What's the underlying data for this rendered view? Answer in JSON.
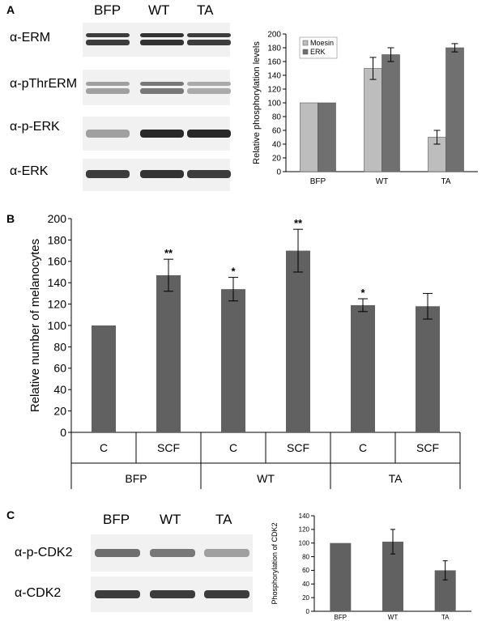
{
  "panels": {
    "A": {
      "letter": "A",
      "blot": {
        "lanes": [
          "BFP",
          "WT",
          "TA"
        ],
        "rows": [
          {
            "label": "α-ERM",
            "intensity": [
              0.85,
              0.9,
              0.85
            ],
            "double": true
          },
          {
            "label": "α-pThrERM",
            "intensity": [
              0.35,
              0.55,
              0.3
            ],
            "double": true
          },
          {
            "label": "α-p-ERK",
            "intensity": [
              0.35,
              0.95,
              0.95
            ],
            "double": false
          },
          {
            "label": "α-ERK",
            "intensity": [
              0.85,
              0.9,
              0.85
            ],
            "double": false
          }
        ]
      }
    },
    "B": {
      "letter": "B"
    },
    "C": {
      "letter": "C",
      "blot": {
        "lanes": [
          "BFP",
          "WT",
          "TA"
        ],
        "rows": [
          {
            "label": "α-p-CDK2",
            "intensity": [
              0.6,
              0.55,
              0.35
            ],
            "double": false
          },
          {
            "label": "α-CDK2",
            "intensity": [
              0.85,
              0.85,
              0.85
            ],
            "double": false
          }
        ]
      }
    }
  },
  "chart_data": [
    {
      "id": "A",
      "type": "bar",
      "categories": [
        "BFP",
        "WT",
        "TA"
      ],
      "series": [
        {
          "name": "Moesin",
          "values": [
            100,
            150,
            50
          ],
          "errors": [
            0,
            16,
            10
          ],
          "color": "#bdbdbd"
        },
        {
          "name": "ERK",
          "values": [
            100,
            170,
            180
          ],
          "errors": [
            0,
            10,
            6
          ],
          "color": "#707070"
        }
      ],
      "ylabel": "Relative phosphorylation levels",
      "ylim": [
        0,
        200
      ],
      "yticks": [
        0,
        20,
        40,
        60,
        80,
        100,
        120,
        140,
        160,
        180,
        200
      ],
      "legend": "top-left",
      "grid": false
    },
    {
      "id": "B",
      "type": "bar",
      "categories": [
        "C",
        "SCF",
        "C",
        "SCF",
        "C",
        "SCF"
      ],
      "groups": [
        "BFP",
        "WT",
        "TA"
      ],
      "values": [
        100,
        147,
        134,
        170,
        119,
        118
      ],
      "errors": [
        0,
        15,
        11,
        20,
        6,
        12
      ],
      "significance": [
        "",
        "**",
        "*",
        "**",
        "*",
        ""
      ],
      "color": "#616161",
      "ylabel": "Relative number of melanocytes",
      "ylim": [
        0,
        200
      ],
      "yticks": [
        0,
        20,
        40,
        60,
        80,
        100,
        120,
        140,
        160,
        180,
        200
      ],
      "grid": false
    },
    {
      "id": "C",
      "type": "bar",
      "categories": [
        "BFP",
        "WT",
        "TA"
      ],
      "values": [
        100,
        102,
        60
      ],
      "errors": [
        0,
        18,
        14
      ],
      "color": "#616161",
      "ylabel": "Phosphorylation of CDK2",
      "ylim": [
        0,
        140
      ],
      "yticks": [
        0,
        20,
        40,
        60,
        80,
        100,
        120,
        140
      ],
      "grid": false
    }
  ]
}
